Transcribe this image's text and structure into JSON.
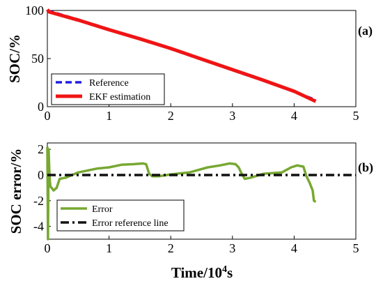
{
  "chart_data": [
    {
      "panel_label": "(a)",
      "type": "line",
      "ylabel": "SOC/%",
      "xlim": [
        0,
        5
      ],
      "ylim": [
        0,
        100
      ],
      "xticks": [
        "0",
        "1",
        "2",
        "3",
        "4",
        "5"
      ],
      "yticks": [
        "0",
        "50",
        "100"
      ],
      "legend_position": "bottom-left",
      "series": [
        {
          "name": "Reference",
          "color": "#1f1fe0",
          "style": "dashed",
          "x": [
            0,
            0.5,
            1,
            1.5,
            2,
            2.5,
            3,
            3.5,
            4,
            4.35
          ],
          "y": [
            100,
            90.5,
            80.5,
            70.5,
            60,
            49,
            38,
            27,
            15.5,
            7
          ]
        },
        {
          "name": "EKF estimation",
          "color": "#f01414",
          "style": "solid",
          "x": [
            0,
            0.03,
            0.5,
            1,
            1.5,
            2,
            2.5,
            3,
            3.5,
            4,
            4.35
          ],
          "y": [
            101,
            98.5,
            90,
            80,
            70.5,
            60.5,
            49.5,
            38.5,
            27.5,
            16,
            5.5
          ]
        }
      ]
    },
    {
      "panel_label": "(b)",
      "type": "line",
      "ylabel": "SOC error/%",
      "xlabel_main": "Time/10",
      "xlabel_sup": "4",
      "xlabel_tail": "s",
      "xlim": [
        0,
        5
      ],
      "ylim": [
        -5,
        2.5
      ],
      "xticks": [
        "0",
        "1",
        "2",
        "3",
        "4",
        "5"
      ],
      "yticks": [
        "-4",
        "-2",
        "0",
        "2"
      ],
      "legend_position": "bottom-left",
      "series": [
        {
          "name": "Error",
          "color": "#77a832",
          "style": "solid",
          "x": [
            0,
            0.01,
            0.02,
            0.03,
            0.04,
            0.05,
            0.07,
            0.1,
            0.15,
            0.2,
            0.3,
            0.5,
            0.8,
            1,
            1.2,
            1.4,
            1.55,
            1.6,
            1.65,
            1.7,
            1.8,
            2,
            2.3,
            2.6,
            2.8,
            2.95,
            3.05,
            3.1,
            3.15,
            3.2,
            3.3,
            3.5,
            3.8,
            3.95,
            4.05,
            4.15,
            4.2,
            4.25,
            4.3,
            4.32,
            4.35
          ],
          "y": [
            2.2,
            -5,
            2.0,
            0.5,
            -0.4,
            -0.9,
            -1.0,
            -1.2,
            -1.0,
            -0.3,
            -0.2,
            0.2,
            0.5,
            0.6,
            0.8,
            0.85,
            0.9,
            0.85,
            0.1,
            -0.1,
            -0.1,
            0.05,
            0.2,
            0.6,
            0.75,
            0.9,
            0.85,
            0.6,
            0.1,
            -0.3,
            -0.2,
            0.1,
            0.2,
            0.6,
            0.75,
            0.65,
            -0.1,
            -0.6,
            -1.2,
            -2.0,
            -2.1
          ]
        },
        {
          "name": "Error reference line",
          "color": "#111111",
          "style": "dashdot",
          "x": [
            0,
            5
          ],
          "y": [
            0,
            0
          ]
        }
      ]
    }
  ]
}
